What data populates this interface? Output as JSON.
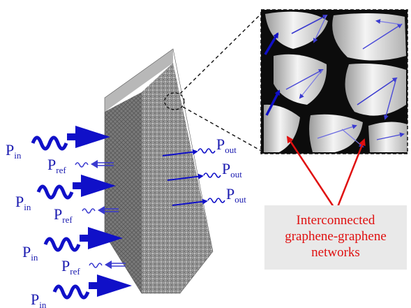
{
  "labels": {
    "p_main": "P",
    "sub_in": "in",
    "sub_ref": "ref",
    "sub_out": "out"
  },
  "callout": {
    "line1": "Interconnected",
    "line2": "graphene-graphene",
    "line3": "networks"
  },
  "colors": {
    "wave_blue": "#1010c8",
    "label_blue": "#1a1ab0",
    "callout_red": "#e01010",
    "callout_bg": "#e9e9e9",
    "foam_gray": "#9a9a9a"
  }
}
